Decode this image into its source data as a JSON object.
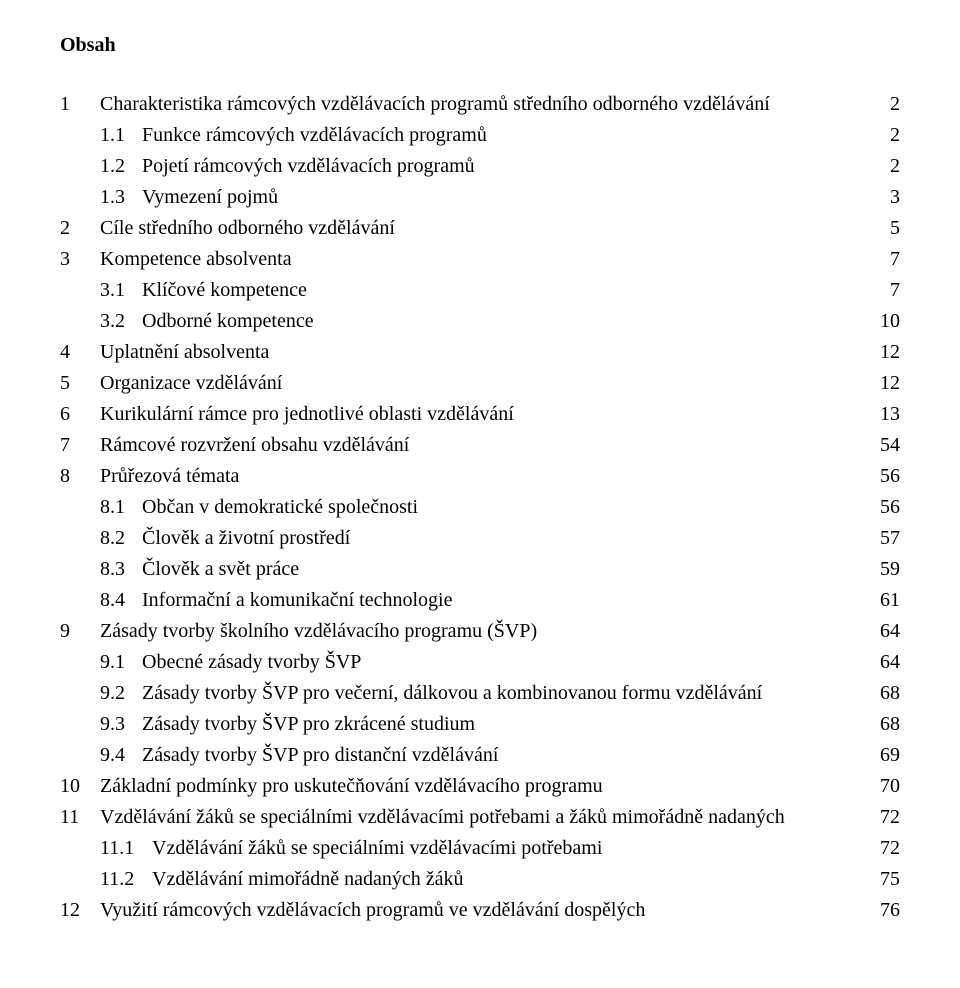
{
  "title": "Obsah",
  "colors": {
    "text": "#000000",
    "background": "#ffffff"
  },
  "typography": {
    "font_family": "Times New Roman",
    "body_fontsize_pt": 15,
    "title_fontsize_pt": 15,
    "title_weight": "bold",
    "line_height": 1.55
  },
  "toc": [
    {
      "num": "1",
      "label": "Charakteristika rámcových vzdělávacích programů středního odborného vzdělávání",
      "page": "2",
      "level": 0
    },
    {
      "num": "1.1",
      "label": "Funkce rámcových vzdělávacích programů",
      "page": "2",
      "level": 1
    },
    {
      "num": "1.2",
      "label": "Pojetí rámcových vzdělávacích programů",
      "page": "2",
      "level": 1
    },
    {
      "num": "1.3",
      "label": "Vymezení pojmů",
      "page": "3",
      "level": 1
    },
    {
      "num": "2",
      "label": "Cíle středního odborného vzdělávání",
      "page": "5",
      "level": 0
    },
    {
      "num": "3",
      "label": "Kompetence absolventa",
      "page": "7",
      "level": 0
    },
    {
      "num": "3.1",
      "label": "Klíčové kompetence",
      "page": "7",
      "level": 1
    },
    {
      "num": "3.2",
      "label": "Odborné kompetence",
      "page": "10",
      "level": 1
    },
    {
      "num": "4",
      "label": "Uplatnění absolventa",
      "page": "12",
      "level": 0
    },
    {
      "num": "5",
      "label": "Organizace vzdělávání",
      "page": "12",
      "level": 0
    },
    {
      "num": "6",
      "label": "Kurikulární rámce pro jednotlivé oblasti vzdělávání",
      "page": "13",
      "level": 0
    },
    {
      "num": "7",
      "label": "Rámcové rozvržení obsahu vzdělávání",
      "page": "54",
      "level": 0
    },
    {
      "num": "8",
      "label": "Průřezová témata",
      "page": "56",
      "level": 0
    },
    {
      "num": "8.1",
      "label": "Občan v demokratické společnosti",
      "page": "56",
      "level": 1
    },
    {
      "num": "8.2",
      "label": "Člověk a životní prostředí",
      "page": "57",
      "level": 1
    },
    {
      "num": "8.3",
      "label": "Člověk a svět práce",
      "page": "59",
      "level": 1
    },
    {
      "num": "8.4",
      "label": "Informační a komunikační technologie",
      "page": "61",
      "level": 1
    },
    {
      "num": "9",
      "label": "Zásady tvorby školního vzdělávacího programu (ŠVP)",
      "page": "64",
      "level": 0
    },
    {
      "num": "9.1",
      "label": "Obecné zásady tvorby ŠVP",
      "page": "64",
      "level": 1
    },
    {
      "num": "9.2",
      "label": "Zásady tvorby ŠVP pro večerní, dálkovou a kombinovanou formu vzdělávání",
      "page": "68",
      "level": 1
    },
    {
      "num": "9.3",
      "label": "Zásady tvorby ŠVP pro zkrácené studium",
      "page": "68",
      "level": 1
    },
    {
      "num": "9.4",
      "label": "Zásady tvorby ŠVP pro distanční vzdělávání",
      "page": "69",
      "level": 1
    },
    {
      "num": "10",
      "label": "Základní podmínky pro uskutečňování vzdělávacího programu",
      "page": "70",
      "level": 0
    },
    {
      "num": "11",
      "label": "Vzdělávání žáků se speciálními vzdělávacími potřebami a žáků mimořádně nadaných",
      "page": "72",
      "level": 0
    },
    {
      "num": "11.1",
      "label": "Vzdělávání žáků se speciálními vzdělávacími potřebami",
      "page": "72",
      "level": 2
    },
    {
      "num": "11.2",
      "label": "Vzdělávání mimořádně nadaných žáků",
      "page": "75",
      "level": 2
    },
    {
      "num": "12",
      "label": "Využití rámcových vzdělávacích programů ve vzdělávání dospělých",
      "page": "76",
      "level": 0
    }
  ]
}
